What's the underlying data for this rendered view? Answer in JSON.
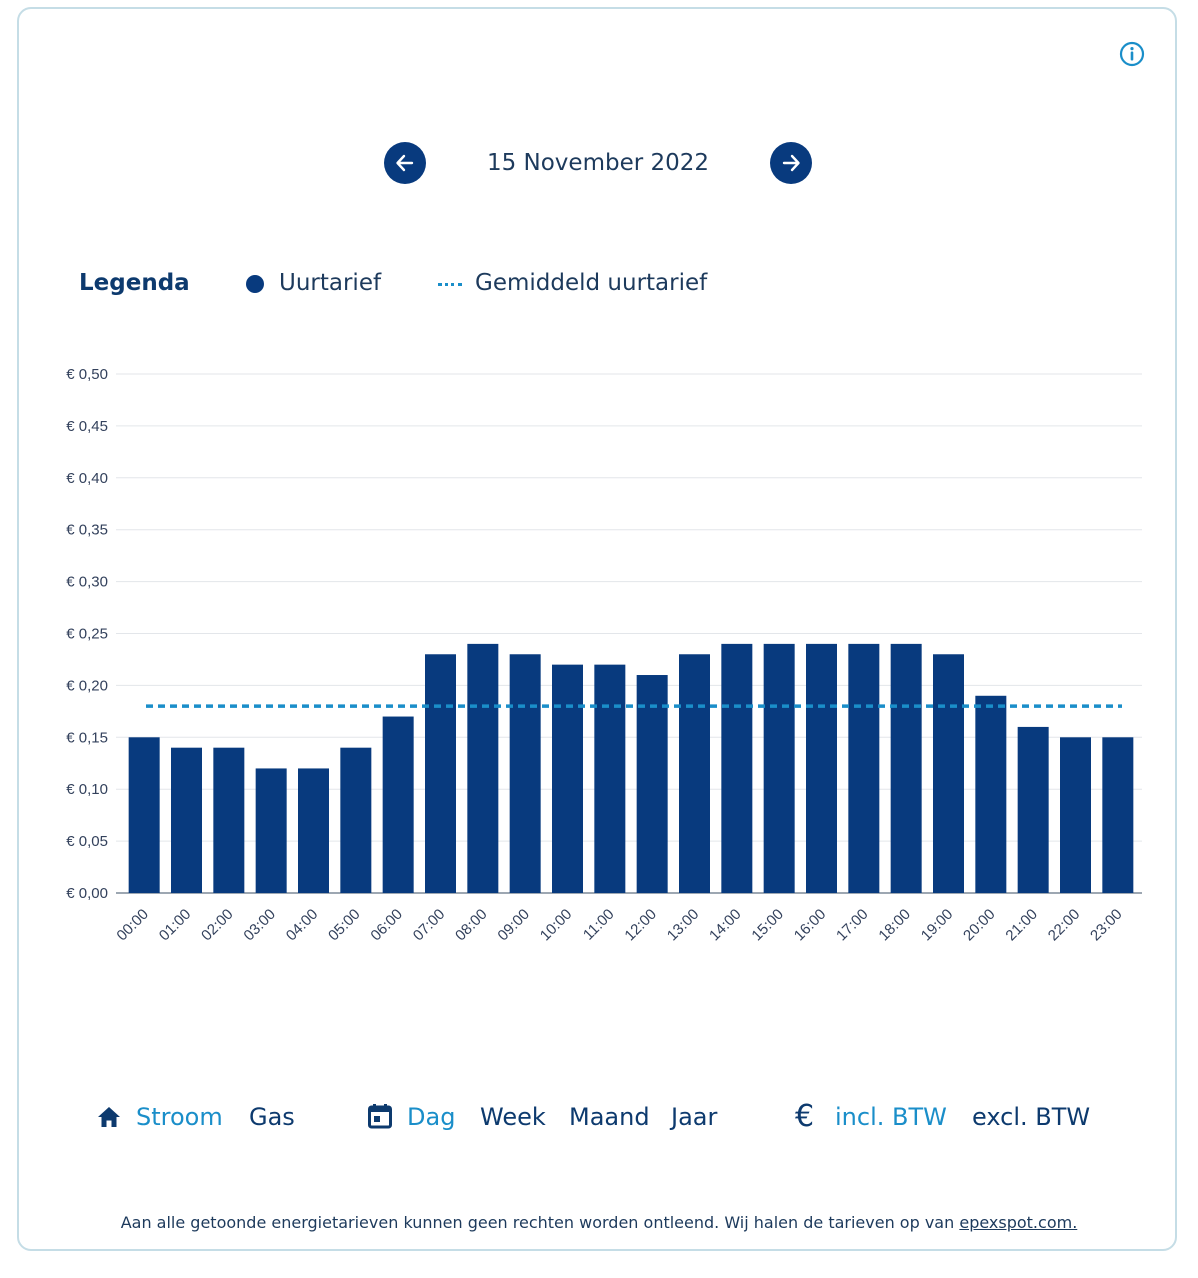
{
  "header": {
    "date": "15 November 2022",
    "prev_icon": "arrow-left-icon",
    "next_icon": "arrow-right-icon",
    "info_icon": "info-icon"
  },
  "legend": {
    "title": "Legenda",
    "bar_label": "Uurtarief",
    "avg_label": "Gemiddeld uurtarief"
  },
  "colors": {
    "bar": "#083a7e",
    "average_line": "#1a8ec9",
    "active": "#1a8ec9",
    "inactive": "#0d3a6e",
    "grid": "#e3e6ea"
  },
  "chart_data": {
    "type": "bar",
    "title": "",
    "xlabel": "",
    "ylabel": "",
    "ylim": [
      0,
      0.5
    ],
    "yticks": [
      0,
      0.05,
      0.1,
      0.15,
      0.2,
      0.25,
      0.3,
      0.35,
      0.4,
      0.45,
      0.5
    ],
    "ytick_labels": [
      "€ 0,00",
      "€ 0,05",
      "€ 0,10",
      "€ 0,15",
      "€ 0,20",
      "€ 0,25",
      "€ 0,30",
      "€ 0,35",
      "€ 0,40",
      "€ 0,45",
      "€ 0,50"
    ],
    "categories": [
      "00:00",
      "01:00",
      "02:00",
      "03:00",
      "04:00",
      "05:00",
      "06:00",
      "07:00",
      "08:00",
      "09:00",
      "10:00",
      "11:00",
      "12:00",
      "13:00",
      "14:00",
      "15:00",
      "16:00",
      "17:00",
      "18:00",
      "19:00",
      "20:00",
      "21:00",
      "22:00",
      "23:00"
    ],
    "series": [
      {
        "name": "Uurtarief",
        "values": [
          0.15,
          0.14,
          0.14,
          0.12,
          0.12,
          0.14,
          0.17,
          0.23,
          0.24,
          0.23,
          0.22,
          0.22,
          0.21,
          0.23,
          0.24,
          0.24,
          0.24,
          0.24,
          0.24,
          0.23,
          0.19,
          0.16,
          0.15,
          0.15
        ]
      }
    ],
    "average": {
      "name": "Gemiddeld uurtarief",
      "value": 0.18
    },
    "grid": true
  },
  "controls": {
    "energy": {
      "icon": "home-icon",
      "options": [
        "Stroom",
        "Gas"
      ],
      "selected": "Stroom"
    },
    "period": {
      "icon": "calendar-icon",
      "options": [
        "Dag",
        "Week",
        "Maand",
        "Jaar"
      ],
      "selected": "Dag"
    },
    "vat": {
      "icon": "euro-icon",
      "options": [
        "incl. BTW",
        "excl. BTW"
      ],
      "selected": "incl. BTW"
    }
  },
  "footer": {
    "text": "Aan alle getoonde energietarieven kunnen geen rechten worden ontleend. Wij halen de tarieven op van",
    "link_text": "epexspot.com."
  }
}
